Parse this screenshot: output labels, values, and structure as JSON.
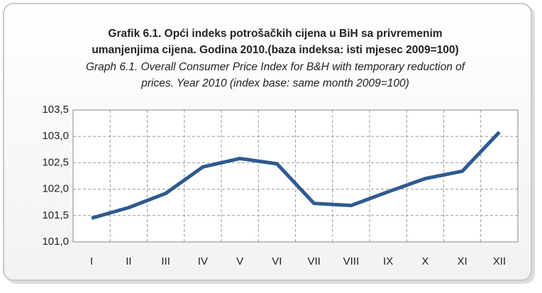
{
  "chart_data": {
    "type": "line",
    "title": [
      "Grafik 6.1. Opći indeks potrošačkih cijena u BiH sa privremenim",
      "umanjenjima cijena. Godina 2010.(baza indeksa: isti mjesec 2009=100)"
    ],
    "subtitle": [
      "Graph 6.1. Overall Consumer Price Index  for B&H with temporary reduction of",
      "prices. Year 2010 (index base: same month 2009=100)"
    ],
    "categories": [
      "I",
      "II",
      "III",
      "IV",
      "V",
      "VI",
      "VII",
      "VIII",
      "IX",
      "X",
      "XI",
      "XII"
    ],
    "values": [
      101.45,
      101.65,
      101.92,
      102.42,
      102.58,
      102.48,
      101.73,
      101.69,
      101.95,
      102.2,
      102.34,
      103.08
    ],
    "color": "#2e5b8f",
    "ylim": [
      101.0,
      103.5
    ],
    "yticks": [
      {
        "value": 101.0,
        "label": "101,0"
      },
      {
        "value": 101.5,
        "label": "101,5"
      },
      {
        "value": 102.0,
        "label": "102,0"
      },
      {
        "value": 102.5,
        "label": "102,5"
      },
      {
        "value": 103.0,
        "label": "103,0"
      },
      {
        "value": 103.5,
        "label": "103,5"
      }
    ],
    "grid": true
  }
}
